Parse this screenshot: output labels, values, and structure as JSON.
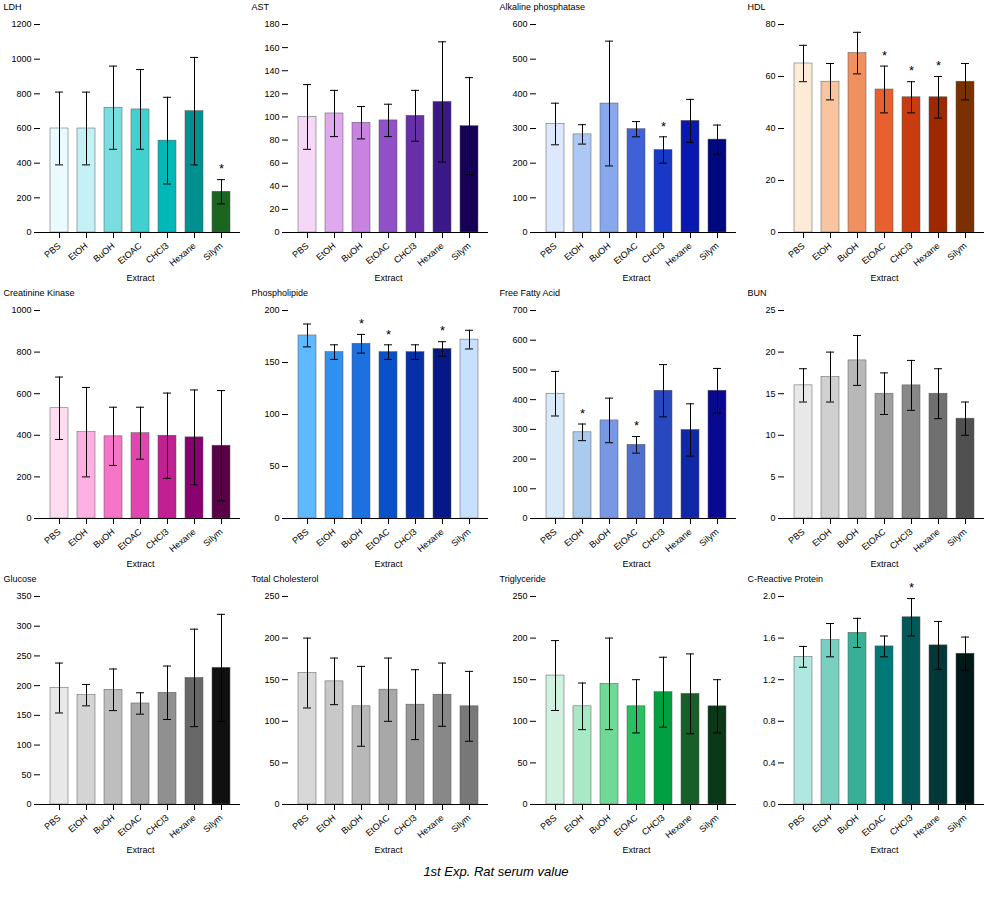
{
  "title": "1st Exp. Rat serum value",
  "chart_data": [
    {
      "type": "bar",
      "ylabel": "LDH",
      "xlabel": "Extract",
      "categories": [
        "PBS",
        "EtOH",
        "BuOH",
        "EtOAC",
        "CHCl3",
        "Hexane",
        "Silym"
      ],
      "values": [
        600,
        600,
        720,
        710,
        530,
        700,
        235
      ],
      "errors": [
        210,
        210,
        240,
        230,
        250,
        310,
        70
      ],
      "colors": [
        "#eafaff",
        "#c5f0f5",
        "#7adde0",
        "#40d0d0",
        "#00b8b8",
        "#009090",
        "#1a6620"
      ],
      "annotations": [
        null,
        null,
        null,
        null,
        null,
        null,
        "*"
      ],
      "ylim": [
        0,
        1200
      ],
      "yticks": [
        0,
        200,
        400,
        600,
        800,
        1000,
        1200
      ]
    },
    {
      "type": "bar",
      "ylabel": "AST",
      "xlabel": "Extract",
      "categories": [
        "PBS",
        "EtOH",
        "BuOH",
        "EtOAC",
        "CHCl3",
        "Hexane",
        "Silym"
      ],
      "values": [
        100,
        103,
        95,
        97,
        101,
        113,
        92
      ],
      "errors": [
        28,
        20,
        14,
        14,
        22,
        52,
        42
      ],
      "colors": [
        "#f5d8f8",
        "#e0a8ee",
        "#c882e0",
        "#9050c8",
        "#6830a8",
        "#3a1888",
        "#150055"
      ],
      "annotations": [
        null,
        null,
        null,
        null,
        null,
        null,
        null
      ],
      "ylim": [
        0,
        180
      ],
      "yticks": [
        0,
        20,
        40,
        60,
        80,
        100,
        120,
        140,
        160,
        180
      ]
    },
    {
      "type": "bar",
      "ylabel": "Alkaline phosphatase",
      "xlabel": "Extract",
      "categories": [
        "PBS",
        "EtOH",
        "BuOH",
        "EtOAC",
        "CHCl3",
        "Hexane",
        "Silym"
      ],
      "values": [
        313,
        283,
        372,
        298,
        238,
        322,
        268
      ],
      "errors": [
        60,
        28,
        180,
        22,
        38,
        62,
        42
      ],
      "colors": [
        "#dce8fc",
        "#aec8f5",
        "#88a8ee",
        "#4060d8",
        "#1838c8",
        "#0818b0",
        "#000880"
      ],
      "annotations": [
        null,
        null,
        null,
        null,
        "*",
        null,
        null
      ],
      "ylim": [
        0,
        600
      ],
      "yticks": [
        0,
        100,
        200,
        300,
        400,
        500,
        600
      ]
    },
    {
      "type": "bar",
      "ylabel": "HDL",
      "xlabel": "Extract",
      "categories": [
        "PBS",
        "EtOH",
        "BuOH",
        "EtOAC",
        "CHCl3",
        "Hexane",
        "Silym"
      ],
      "values": [
        65,
        58,
        69,
        55,
        52,
        52,
        58
      ],
      "errors": [
        7,
        7,
        8,
        9,
        6,
        8,
        7
      ],
      "colors": [
        "#fdebd8",
        "#f8c5a0",
        "#f09060",
        "#e86030",
        "#c83c10",
        "#a02800",
        "#7a3000"
      ],
      "annotations": [
        null,
        null,
        null,
        "*",
        "*",
        "*",
        null
      ],
      "ylim": [
        0,
        80
      ],
      "yticks": [
        0,
        20,
        40,
        60,
        80
      ]
    },
    {
      "type": "bar",
      "ylabel": "Creatinine Kinase",
      "xlabel": "Extract",
      "categories": [
        "PBS",
        "EtOH",
        "BuOH",
        "EtOAC",
        "CHCl3",
        "Hexane",
        "Silym"
      ],
      "values": [
        530,
        415,
        395,
        410,
        398,
        390,
        350
      ],
      "errors": [
        150,
        215,
        140,
        125,
        205,
        228,
        265
      ],
      "colors": [
        "#ffddf0",
        "#ffb0e2",
        "#f575c8",
        "#e045b0",
        "#c02092",
        "#8a0070",
        "#5a0048"
      ],
      "annotations": [
        null,
        null,
        null,
        null,
        null,
        null,
        null
      ],
      "ylim": [
        0,
        1000
      ],
      "yticks": [
        0,
        200,
        400,
        600,
        800,
        1000
      ]
    },
    {
      "type": "bar",
      "ylabel": "Phospholipide",
      "xlabel": "Extract",
      "categories": [
        "PBS",
        "EtOH",
        "BuOH",
        "EtOAC",
        "CHCl3",
        "Hexane",
        "Silym"
      ],
      "values": [
        176,
        160,
        168,
        160,
        160,
        163,
        172
      ],
      "errors": [
        11,
        7,
        9,
        7,
        7,
        7,
        9
      ],
      "colors": [
        "#60b8ff",
        "#3090f0",
        "#1c70e0",
        "#0a50c8",
        "#0630a8",
        "#041888",
        "#c8e0ff"
      ],
      "annotations": [
        null,
        null,
        "*",
        "*",
        null,
        "*",
        null
      ],
      "ylim": [
        0,
        200
      ],
      "yticks": [
        0,
        50,
        100,
        150,
        200
      ]
    },
    {
      "type": "bar",
      "ylabel": "Free Fatty Acid",
      "xlabel": "Extract",
      "categories": [
        "PBS",
        "EtOH",
        "BuOH",
        "EtOAC",
        "CHCl3",
        "Hexane",
        "Silym"
      ],
      "values": [
        420,
        290,
        330,
        248,
        430,
        298,
        430
      ],
      "errors": [
        75,
        28,
        75,
        28,
        88,
        88,
        75
      ],
      "colors": [
        "#d8eaf8",
        "#aacaee",
        "#7898e4",
        "#5070d0",
        "#2848c0",
        "#1028a8",
        "#080890"
      ],
      "annotations": [
        null,
        "*",
        null,
        "*",
        null,
        null,
        null
      ],
      "ylim": [
        0,
        700
      ],
      "yticks": [
        0,
        100,
        200,
        300,
        400,
        500,
        600,
        700
      ]
    },
    {
      "type": "bar",
      "ylabel": "BUN",
      "xlabel": "Extract",
      "categories": [
        "PBS",
        "EtOH",
        "BuOH",
        "EtOAC",
        "CHCl3",
        "Hexane",
        "Silym"
      ],
      "values": [
        16,
        17,
        19,
        15,
        16,
        15,
        12
      ],
      "errors": [
        2,
        3,
        3,
        2.5,
        3,
        3,
        2
      ],
      "colors": [
        "#e8e8e8",
        "#d0d0d0",
        "#b8b8b8",
        "#a0a0a0",
        "#888888",
        "#707070",
        "#505050"
      ],
      "annotations": [
        null,
        null,
        null,
        null,
        null,
        null,
        null
      ],
      "ylim": [
        0,
        25
      ],
      "yticks": [
        0,
        5,
        10,
        15,
        20,
        25
      ]
    },
    {
      "type": "bar",
      "ylabel": "Glucose",
      "xlabel": "Extract",
      "categories": [
        "PBS",
        "EtOH",
        "BuOH",
        "EtOAC",
        "CHCl3",
        "Hexane",
        "Silym"
      ],
      "values": [
        196,
        184,
        193,
        170,
        188,
        213,
        230
      ],
      "errors": [
        42,
        18,
        35,
        18,
        45,
        82,
        90
      ],
      "colors": [
        "#e8e8e8",
        "#d4d4d4",
        "#bebebe",
        "#a8a8a8",
        "#909090",
        "#686868",
        "#101010"
      ],
      "annotations": [
        null,
        null,
        null,
        null,
        null,
        null,
        null
      ],
      "ylim": [
        0,
        350
      ],
      "yticks": [
        0,
        50,
        100,
        150,
        200,
        250,
        300,
        350
      ]
    },
    {
      "type": "bar",
      "ylabel": "Total Cholesterol",
      "xlabel": "Extract",
      "categories": [
        "PBS",
        "EtOH",
        "BuOH",
        "EtOAC",
        "CHCl3",
        "Hexane",
        "Silym"
      ],
      "values": [
        158,
        148,
        118,
        138,
        120,
        132,
        118
      ],
      "errors": [
        42,
        28,
        48,
        38,
        42,
        38,
        42
      ],
      "colors": [
        "#d8d8d8",
        "#c8c8c8",
        "#b8b8b8",
        "#a8a8a8",
        "#989898",
        "#888888",
        "#787878"
      ],
      "annotations": [
        null,
        null,
        null,
        null,
        null,
        null,
        null
      ],
      "ylim": [
        0,
        250
      ],
      "yticks": [
        0,
        50,
        100,
        150,
        200,
        250
      ]
    },
    {
      "type": "bar",
      "ylabel": "Triglyceride",
      "xlabel": "Extract",
      "categories": [
        "PBS",
        "EtOH",
        "BuOH",
        "EtOAC",
        "CHCl3",
        "Hexane",
        "Silym"
      ],
      "values": [
        155,
        118,
        145,
        118,
        135,
        133,
        118
      ],
      "errors": [
        42,
        28,
        55,
        32,
        42,
        48,
        32
      ],
      "colors": [
        "#d0f0e0",
        "#a8e8c5",
        "#70d898",
        "#28c060",
        "#00a040",
        "#185e28",
        "#0a3818"
      ],
      "annotations": [
        null,
        null,
        null,
        null,
        null,
        null,
        null
      ],
      "ylim": [
        0,
        250
      ],
      "yticks": [
        0,
        50,
        100,
        150,
        200,
        250
      ]
    },
    {
      "type": "bar",
      "ylabel": "C-Reactive Protein",
      "xlabel": "Extract",
      "categories": [
        "PBS",
        "EtOH",
        "BuOH",
        "EtOAC",
        "CHCl3",
        "Hexane",
        "Silym"
      ],
      "values": [
        1.42,
        1.58,
        1.65,
        1.52,
        1.8,
        1.53,
        1.45
      ],
      "errors": [
        0.1,
        0.16,
        0.14,
        0.1,
        0.18,
        0.23,
        0.16
      ],
      "colors": [
        "#b0e8e0",
        "#78d0c0",
        "#38b098",
        "#007878",
        "#005858",
        "#003838",
        "#001818"
      ],
      "annotations": [
        null,
        null,
        null,
        null,
        "*",
        null,
        null
      ],
      "ylim": [
        0,
        2.0
      ],
      "yticks": [
        {
          "value": 0,
          "label": "0.0"
        },
        0.4,
        0.8,
        1.2,
        1.6,
        {
          "value": 2.0,
          "label": "2.0"
        }
      ]
    }
  ]
}
